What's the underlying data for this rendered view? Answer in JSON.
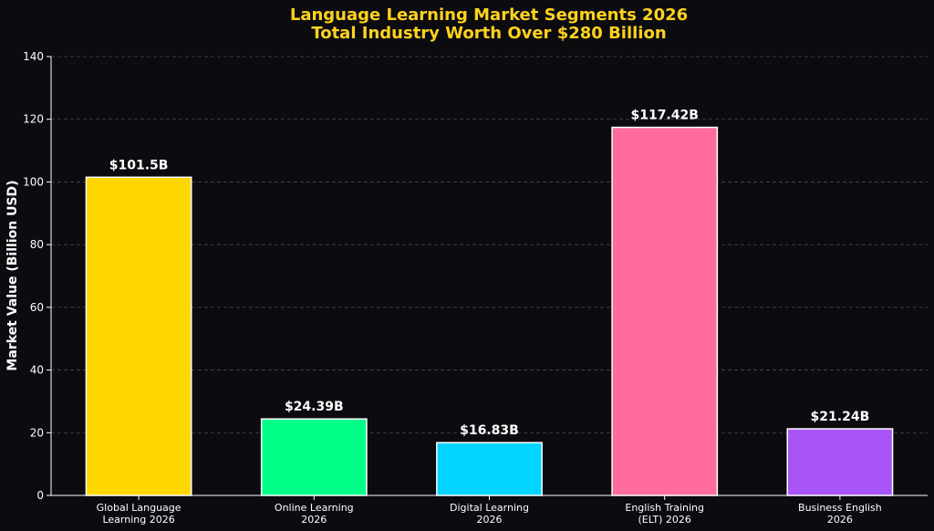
{
  "chart_data": {
    "type": "bar",
    "title_line1": "Language Learning Market Segments 2026",
    "title_line2": "Total Industry Worth Over $280 Billion",
    "ylabel": "Market Value (Billion USD)",
    "xlabel": "",
    "ylim": [
      0,
      140
    ],
    "yticks": [
      0,
      20,
      40,
      60,
      80,
      100,
      120,
      140
    ],
    "grid": true,
    "categories": [
      [
        "Global Language",
        "Learning 2026"
      ],
      [
        "Online Learning",
        "2026"
      ],
      [
        "Digital Learning",
        "2026"
      ],
      [
        "English Training",
        "(ELT) 2026"
      ],
      [
        "Business English",
        "2026"
      ]
    ],
    "values": [
      101.5,
      24.39,
      16.83,
      117.42,
      21.24
    ],
    "value_labels": [
      "$101.5B",
      "$24.39B",
      "$16.83B",
      "$117.42B",
      "$21.24B"
    ],
    "colors": [
      "#FFD700",
      "#00FF88",
      "#00D4FF",
      "#FF6B9D",
      "#A855F7"
    ],
    "title_color": "#FFD21E",
    "background": "#0b0b10",
    "text_color": "#FFFFFF"
  }
}
